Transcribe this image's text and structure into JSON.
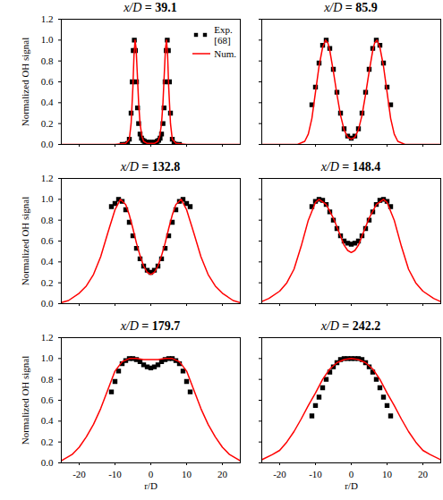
{
  "chart_data": [
    {
      "type": "line",
      "title": "x/D = 39.1",
      "ylabel": "Normalized OH signal",
      "tick_labels": "y",
      "legend": "upper right",
      "xlim": [
        -25,
        25
      ],
      "ylim": [
        0,
        1.2
      ],
      "xticks": [
        -20,
        -10,
        0,
        10,
        20
      ],
      "yticks": [
        {
          "value": 0,
          "label": "0.0"
        },
        {
          "value": 0.2,
          "label": "0.2"
        },
        {
          "value": 0.4,
          "label": "0.4"
        },
        {
          "value": 0.6,
          "label": "0.6"
        },
        {
          "value": 0.8,
          "label": "0.8"
        },
        {
          "value": 1.0,
          "label": "1.0"
        },
        {
          "value": 1.2,
          "label": "1.2"
        }
      ],
      "series": [
        {
          "name": "Exp. [68]",
          "type": "scatter",
          "marker": "square",
          "color": "#000000",
          "x": [
            -8,
            -7,
            -6.5,
            -6,
            -5.5,
            -5.2,
            -4.9,
            -4.6,
            -4.3,
            -4,
            -3.7,
            -3.4,
            -3,
            -2.6,
            -2.2,
            -1.8,
            -1.4,
            -1,
            -0.5,
            0,
            0.5,
            1,
            1.4,
            1.8,
            2.2,
            2.6,
            3,
            3.4,
            3.7,
            4,
            4.3,
            4.6,
            4.9,
            5.2,
            5.5,
            6,
            6.5,
            7,
            8
          ],
          "values": [
            0,
            0,
            0.01,
            0.05,
            0.3,
            0.6,
            0.9,
            1.0,
            0.9,
            0.6,
            0.35,
            0.2,
            0.1,
            0.06,
            0.04,
            0.03,
            0.02,
            0.02,
            0.02,
            0.02,
            0.02,
            0.02,
            0.02,
            0.03,
            0.04,
            0.06,
            0.1,
            0.2,
            0.35,
            0.6,
            0.9,
            1.0,
            0.9,
            0.6,
            0.3,
            0.05,
            0.01,
            0,
            0
          ]
        },
        {
          "name": "Num.",
          "type": "line",
          "color": "#ff0000",
          "x": [
            -25,
            -10,
            -7,
            -6,
            -5.5,
            -5,
            -4.7,
            -4.4,
            -4.1,
            -3.8,
            -3.4,
            -3,
            -2.5,
            -2,
            -1,
            0,
            1,
            2,
            2.5,
            3,
            3.4,
            3.8,
            4.1,
            4.4,
            4.7,
            5,
            5.5,
            6,
            7,
            10,
            25
          ],
          "values": [
            0,
            0,
            0.01,
            0.05,
            0.2,
            0.55,
            0.85,
            1.0,
            0.92,
            0.7,
            0.4,
            0.2,
            0.08,
            0.03,
            0.01,
            0.01,
            0.01,
            0.03,
            0.08,
            0.2,
            0.4,
            0.7,
            0.92,
            1.0,
            0.85,
            0.55,
            0.2,
            0.05,
            0.01,
            0,
            0
          ]
        }
      ]
    },
    {
      "type": "line",
      "title": "x/D = 85.9",
      "tick_labels": false,
      "xlim": [
        -25,
        25
      ],
      "ylim": [
        0,
        1.2
      ],
      "xticks": [
        -20,
        -10,
        0,
        10,
        20
      ],
      "yticks": [
        {
          "value": 0,
          "label": "0.0"
        },
        {
          "value": 0.2,
          "label": "0.2"
        },
        {
          "value": 0.4,
          "label": "0.4"
        },
        {
          "value": 0.6,
          "label": "0.6"
        },
        {
          "value": 0.8,
          "label": "0.8"
        },
        {
          "value": 1.0,
          "label": "1.0"
        },
        {
          "value": 1.2,
          "label": "1.2"
        }
      ],
      "series": [
        {
          "name": "Exp. [68]",
          "type": "scatter",
          "marker": "square",
          "color": "#000000",
          "x": [
            -11,
            -10,
            -9,
            -8,
            -7,
            -6,
            -5,
            -4,
            -3,
            -2,
            -1,
            0,
            1,
            2,
            3,
            4,
            5,
            6,
            7,
            8,
            9,
            10,
            11
          ],
          "values": [
            0.38,
            0.55,
            0.78,
            0.95,
            1.0,
            0.92,
            0.72,
            0.5,
            0.3,
            0.15,
            0.08,
            0.06,
            0.08,
            0.15,
            0.3,
            0.5,
            0.72,
            0.92,
            1.0,
            0.95,
            0.78,
            0.55,
            0.38
          ]
        },
        {
          "name": "Num.",
          "type": "line",
          "color": "#ff0000",
          "x": [
            -25,
            -15,
            -13,
            -12,
            -11,
            -10,
            -9,
            -8,
            -7.2,
            -6.5,
            -6,
            -5,
            -4,
            -3,
            -2,
            -1,
            0,
            1,
            2,
            3,
            4,
            5,
            6,
            6.5,
            7.2,
            8,
            9,
            10,
            11,
            12,
            13,
            15,
            25
          ],
          "values": [
            0,
            0,
            0.03,
            0.1,
            0.25,
            0.5,
            0.75,
            0.93,
            1.0,
            0.97,
            0.9,
            0.7,
            0.48,
            0.28,
            0.14,
            0.07,
            0.05,
            0.07,
            0.14,
            0.28,
            0.48,
            0.7,
            0.9,
            0.97,
            1.0,
            0.93,
            0.75,
            0.5,
            0.25,
            0.1,
            0.03,
            0,
            0
          ]
        }
      ]
    },
    {
      "type": "line",
      "title": "x/D = 132.8",
      "ylabel": "Normalized OH signal",
      "tick_labels": "y",
      "xlim": [
        -25,
        25
      ],
      "ylim": [
        0,
        1.2
      ],
      "xticks": [
        -20,
        -10,
        0,
        10,
        20
      ],
      "yticks": [
        {
          "value": 0,
          "label": "0.0"
        },
        {
          "value": 0.2,
          "label": "0.2"
        },
        {
          "value": 0.4,
          "label": "0.4"
        },
        {
          "value": 0.6,
          "label": "0.6"
        },
        {
          "value": 0.8,
          "label": "0.8"
        },
        {
          "value": 1.0,
          "label": "1.0"
        },
        {
          "value": 1.2,
          "label": "1.2"
        }
      ],
      "series": [
        {
          "name": "Exp. [68]",
          "type": "scatter",
          "marker": "square",
          "color": "#000000",
          "x": [
            -11,
            -10,
            -9,
            -8,
            -7,
            -6,
            -5,
            -4,
            -3,
            -2,
            -1,
            0,
            1,
            2,
            3,
            4,
            5,
            6,
            7,
            8,
            9,
            10,
            11
          ],
          "values": [
            0.93,
            0.96,
            1.0,
            0.98,
            0.9,
            0.78,
            0.65,
            0.53,
            0.43,
            0.36,
            0.32,
            0.3,
            0.32,
            0.36,
            0.43,
            0.53,
            0.65,
            0.78,
            0.9,
            0.98,
            1.0,
            0.96,
            0.93
          ]
        },
        {
          "name": "Num.",
          "type": "line",
          "color": "#ff0000",
          "x": [
            -25,
            -23,
            -20,
            -18,
            -16,
            -14,
            -12,
            -10,
            -8.5,
            -7,
            -6,
            -5,
            -4,
            -3,
            -2,
            -1,
            0,
            1,
            2,
            3,
            4,
            5,
            6,
            7,
            8.5,
            10,
            12,
            14,
            16,
            18,
            20,
            23,
            25
          ],
          "values": [
            0.01,
            0.03,
            0.1,
            0.17,
            0.28,
            0.45,
            0.68,
            0.9,
            1.0,
            0.95,
            0.85,
            0.72,
            0.58,
            0.46,
            0.36,
            0.3,
            0.28,
            0.3,
            0.36,
            0.46,
            0.58,
            0.72,
            0.85,
            0.95,
            1.0,
            0.9,
            0.68,
            0.45,
            0.28,
            0.17,
            0.1,
            0.03,
            0.01
          ]
        }
      ]
    },
    {
      "type": "line",
      "title": "x/D = 148.4",
      "tick_labels": false,
      "xlim": [
        -25,
        25
      ],
      "ylim": [
        0,
        1.2
      ],
      "xticks": [
        -20,
        -10,
        0,
        10,
        20
      ],
      "yticks": [
        {
          "value": 0,
          "label": "0.0"
        },
        {
          "value": 0.2,
          "label": "0.2"
        },
        {
          "value": 0.4,
          "label": "0.4"
        },
        {
          "value": 0.6,
          "label": "0.6"
        },
        {
          "value": 0.8,
          "label": "0.8"
        },
        {
          "value": 1.0,
          "label": "1.0"
        },
        {
          "value": 1.2,
          "label": "1.2"
        }
      ],
      "series": [
        {
          "name": "Exp. [68]",
          "type": "scatter",
          "marker": "square",
          "color": "#000000",
          "x": [
            -11,
            -10,
            -9,
            -8,
            -7,
            -6,
            -5,
            -4,
            -3,
            -2,
            -1,
            0,
            1,
            2,
            3,
            4,
            5,
            6,
            7,
            8,
            9,
            10,
            11
          ],
          "values": [
            0.93,
            0.98,
            1.0,
            0.99,
            0.95,
            0.88,
            0.8,
            0.72,
            0.65,
            0.6,
            0.58,
            0.57,
            0.58,
            0.6,
            0.65,
            0.72,
            0.8,
            0.88,
            0.95,
            0.99,
            1.0,
            0.98,
            0.93
          ]
        },
        {
          "name": "Num.",
          "type": "line",
          "color": "#ff0000",
          "x": [
            -25,
            -23,
            -20,
            -18,
            -16,
            -14,
            -12,
            -10,
            -9,
            -7,
            -5,
            -3,
            -2,
            -1,
            0,
            1,
            2,
            3,
            5,
            7,
            9,
            10,
            12,
            14,
            16,
            18,
            20,
            23,
            25
          ],
          "values": [
            0.02,
            0.05,
            0.12,
            0.2,
            0.33,
            0.55,
            0.8,
            0.97,
            1.0,
            0.95,
            0.82,
            0.65,
            0.56,
            0.51,
            0.49,
            0.51,
            0.56,
            0.65,
            0.82,
            0.95,
            1.0,
            0.97,
            0.8,
            0.55,
            0.33,
            0.2,
            0.12,
            0.05,
            0.02
          ]
        }
      ]
    },
    {
      "type": "line",
      "title": "x/D = 179.7",
      "ylabel": "Normalized OH signal",
      "xlabel": "r/D",
      "xlim": [
        -25,
        25
      ],
      "ylim": [
        0,
        1.2
      ],
      "xticks": [
        -20,
        -10,
        0,
        10,
        20
      ],
      "yticks": [
        {
          "value": 0,
          "label": "0.0"
        },
        {
          "value": 0.2,
          "label": "0.2"
        },
        {
          "value": 0.4,
          "label": "0.4"
        },
        {
          "value": 0.6,
          "label": "0.6"
        },
        {
          "value": 0.8,
          "label": "0.8"
        },
        {
          "value": 1.0,
          "label": "1.0"
        },
        {
          "value": 1.2,
          "label": "1.2"
        }
      ],
      "series": [
        {
          "name": "Exp. [68]",
          "type": "scatter",
          "marker": "square",
          "color": "#000000",
          "x": [
            -11,
            -10,
            -9,
            -8,
            -7,
            -6,
            -5,
            -4,
            -3,
            -2,
            -1,
            0,
            1,
            2,
            3,
            4,
            5,
            6,
            7,
            8,
            9,
            10,
            11
          ],
          "values": [
            0.68,
            0.78,
            0.88,
            0.95,
            0.98,
            1.0,
            1.0,
            0.99,
            0.97,
            0.94,
            0.92,
            0.91,
            0.92,
            0.94,
            0.97,
            0.99,
            1.0,
            1.0,
            0.98,
            0.95,
            0.88,
            0.78,
            0.68
          ]
        },
        {
          "name": "Num.",
          "type": "line",
          "color": "#ff0000",
          "x": [
            -25,
            -22,
            -20,
            -18,
            -16,
            -14,
            -12,
            -10,
            -8,
            -6,
            -4,
            -2,
            0,
            2,
            4,
            6,
            8,
            10,
            12,
            14,
            16,
            18,
            20,
            22,
            25
          ],
          "values": [
            0.02,
            0.08,
            0.15,
            0.25,
            0.37,
            0.52,
            0.7,
            0.88,
            0.97,
            1.0,
            1.0,
            0.99,
            0.99,
            0.99,
            1.0,
            1.0,
            0.97,
            0.88,
            0.7,
            0.52,
            0.37,
            0.25,
            0.15,
            0.08,
            0.02
          ]
        }
      ]
    },
    {
      "type": "line",
      "title": "x/D = 242.2",
      "xlabel": "r/D",
      "tick_labels": "x",
      "xlim": [
        -25,
        25
      ],
      "ylim": [
        0,
        1.2
      ],
      "xticks": [
        -20,
        -10,
        0,
        10,
        20
      ],
      "yticks": [
        {
          "value": 0,
          "label": "0.0"
        },
        {
          "value": 0.2,
          "label": "0.2"
        },
        {
          "value": 0.4,
          "label": "0.4"
        },
        {
          "value": 0.6,
          "label": "0.6"
        },
        {
          "value": 0.8,
          "label": "0.8"
        },
        {
          "value": 1.0,
          "label": "1.0"
        },
        {
          "value": 1.2,
          "label": "1.2"
        }
      ],
      "series": [
        {
          "name": "Exp. [68]",
          "type": "scatter",
          "marker": "square",
          "color": "#000000",
          "x": [
            -11,
            -10,
            -9,
            -8,
            -7,
            -6,
            -5,
            -4,
            -3,
            -2,
            -1,
            0,
            1,
            2,
            3,
            4,
            5,
            6,
            7,
            8,
            9,
            10,
            11
          ],
          "values": [
            0.45,
            0.55,
            0.63,
            0.72,
            0.8,
            0.87,
            0.92,
            0.96,
            0.99,
            1.0,
            1.0,
            1.0,
            1.0,
            1.0,
            0.99,
            0.96,
            0.92,
            0.87,
            0.8,
            0.72,
            0.63,
            0.55,
            0.45
          ]
        },
        {
          "name": "Num.",
          "type": "line",
          "color": "#ff0000",
          "x": [
            -25,
            -22,
            -20,
            -18,
            -16,
            -14,
            -12,
            -10,
            -8,
            -6,
            -4,
            -2,
            0,
            2,
            4,
            6,
            8,
            10,
            12,
            14,
            16,
            18,
            20,
            22,
            25
          ],
          "values": [
            0.03,
            0.08,
            0.12,
            0.2,
            0.3,
            0.42,
            0.55,
            0.67,
            0.8,
            0.9,
            0.96,
            0.99,
            1.0,
            0.99,
            0.96,
            0.9,
            0.8,
            0.67,
            0.55,
            0.42,
            0.3,
            0.2,
            0.12,
            0.08,
            0.03
          ]
        }
      ]
    }
  ]
}
